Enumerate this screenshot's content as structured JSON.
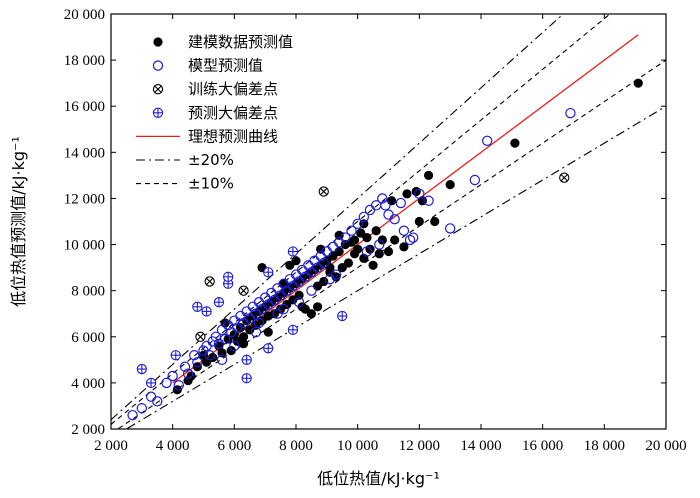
{
  "chart_data": {
    "type": "scatter",
    "title": "",
    "xlabel": "低位热值/kJ·kg⁻¹",
    "ylabel": "低位热值预测值/kJ·kg⁻¹",
    "xlim": [
      2000,
      20000
    ],
    "ylim": [
      2000,
      20000
    ],
    "x_ticks": [
      2000,
      4000,
      6000,
      8000,
      10000,
      12000,
      14000,
      16000,
      18000,
      20000
    ],
    "y_ticks": [
      2000,
      4000,
      6000,
      8000,
      10000,
      12000,
      14000,
      16000,
      18000,
      20000
    ],
    "x_tick_labels": [
      "2 000",
      "4 000",
      "6 000",
      "8 000",
      "10 000",
      "12 000",
      "14 000",
      "16 000",
      "18 000",
      "20 000"
    ],
    "y_tick_labels": [
      "2 000",
      "4 000",
      "6 000",
      "8 000",
      "10 000",
      "12 000",
      "14 000",
      "16 000",
      "18 000",
      "20 000"
    ],
    "grid": false,
    "legend_position": "top-left",
    "colors": {
      "train": "#000000",
      "pred": "#1c1cd6",
      "ideal": "#e8201c",
      "bounds": "#000000"
    },
    "legend": [
      {
        "key": "train",
        "label": "建模数据预测值"
      },
      {
        "key": "pred",
        "label": "模型预测值"
      },
      {
        "key": "train_outlier",
        "label": "训练大偏差点"
      },
      {
        "key": "pred_outlier",
        "label": "预测大偏差点"
      },
      {
        "key": "ideal",
        "label": "理想预测曲线"
      },
      {
        "key": "band20",
        "label": "±20%"
      },
      {
        "key": "band10",
        "label": "±10%"
      }
    ],
    "ideal_line": {
      "x": [
        4000,
        19100
      ],
      "y": [
        4000,
        19100
      ]
    },
    "bands": [
      {
        "key": "band20",
        "factors": [
          1.2,
          0.8
        ],
        "style": "dashdot"
      },
      {
        "key": "band10",
        "factors": [
          1.1,
          0.9
        ],
        "style": "dashed"
      }
    ],
    "series": [
      {
        "key": "train",
        "name": "建模数据预测值",
        "points": [
          [
            4150,
            3700
          ],
          [
            4500,
            4100
          ],
          [
            4800,
            4700
          ],
          [
            5100,
            4900
          ],
          [
            5300,
            5100
          ],
          [
            5500,
            5600
          ],
          [
            5600,
            5300
          ],
          [
            5800,
            5900
          ],
          [
            5900,
            5400
          ],
          [
            6000,
            6100
          ],
          [
            6100,
            5800
          ],
          [
            6200,
            6400
          ],
          [
            6300,
            6000
          ],
          [
            6400,
            6700
          ],
          [
            6500,
            6300
          ],
          [
            6600,
            6900
          ],
          [
            6700,
            6500
          ],
          [
            6800,
            7100
          ],
          [
            6900,
            6700
          ],
          [
            7000,
            7300
          ],
          [
            7100,
            6900
          ],
          [
            7200,
            7500
          ],
          [
            7300,
            7000
          ],
          [
            7400,
            7700
          ],
          [
            7500,
            7200
          ],
          [
            7600,
            7900
          ],
          [
            7700,
            7400
          ],
          [
            7800,
            8100
          ],
          [
            7900,
            7600
          ],
          [
            8000,
            8300
          ],
          [
            8100,
            7800
          ],
          [
            8200,
            8500
          ],
          [
            8300,
            7200
          ],
          [
            8400,
            8700
          ],
          [
            8500,
            7000
          ],
          [
            8600,
            8900
          ],
          [
            8700,
            7300
          ],
          [
            8800,
            9100
          ],
          [
            8900,
            8400
          ],
          [
            9000,
            9300
          ],
          [
            9100,
            8800
          ],
          [
            9200,
            9500
          ],
          [
            9300,
            8600
          ],
          [
            9400,
            9700
          ],
          [
            9500,
            9000
          ],
          [
            9600,
            10000
          ],
          [
            9700,
            9200
          ],
          [
            9800,
            10100
          ],
          [
            9900,
            9600
          ],
          [
            10000,
            9800
          ],
          [
            10100,
            10500
          ],
          [
            10200,
            9400
          ],
          [
            10300,
            10300
          ],
          [
            10400,
            9800
          ],
          [
            10500,
            9100
          ],
          [
            10600,
            10600
          ],
          [
            10700,
            9600
          ],
          [
            10800,
            10200
          ],
          [
            11000,
            9700
          ],
          [
            11100,
            11900
          ],
          [
            11200,
            10200
          ],
          [
            11500,
            9900
          ],
          [
            11600,
            12200
          ],
          [
            11900,
            12300
          ],
          [
            12000,
            11000
          ],
          [
            12100,
            11900
          ],
          [
            12300,
            13000
          ],
          [
            12500,
            11000
          ],
          [
            13000,
            12600
          ],
          [
            15100,
            14400
          ],
          [
            19100,
            17000
          ],
          [
            6900,
            9000
          ],
          [
            7800,
            9100
          ],
          [
            8000,
            9300
          ],
          [
            9400,
            10400
          ],
          [
            10200,
            10900
          ],
          [
            5700,
            6600
          ],
          [
            6300,
            5700
          ],
          [
            7100,
            6200
          ],
          [
            7600,
            8300
          ],
          [
            8800,
            9800
          ],
          [
            9100,
            9000
          ],
          [
            4600,
            4300
          ],
          [
            5000,
            5200
          ],
          [
            8200,
            7300
          ],
          [
            8700,
            8200
          ],
          [
            9900,
            10200
          ]
        ]
      },
      {
        "key": "pred",
        "name": "模型预测值",
        "points": [
          [
            2700,
            2600
          ],
          [
            3000,
            2900
          ],
          [
            3300,
            3400
          ],
          [
            3500,
            3200
          ],
          [
            3800,
            4000
          ],
          [
            4000,
            4300
          ],
          [
            4200,
            3900
          ],
          [
            4400,
            4700
          ],
          [
            4500,
            4400
          ],
          [
            4700,
            5200
          ],
          [
            4800,
            4900
          ],
          [
            5000,
            5400
          ],
          [
            5100,
            5600
          ],
          [
            5200,
            5200
          ],
          [
            5300,
            5800
          ],
          [
            5400,
            6000
          ],
          [
            5500,
            5700
          ],
          [
            5600,
            6300
          ],
          [
            5700,
            5900
          ],
          [
            5800,
            6500
          ],
          [
            5900,
            6200
          ],
          [
            6000,
            6700
          ],
          [
            6100,
            6400
          ],
          [
            6200,
            6900
          ],
          [
            6300,
            6600
          ],
          [
            6400,
            7100
          ],
          [
            6500,
            6800
          ],
          [
            6600,
            7300
          ],
          [
            6700,
            7000
          ],
          [
            6800,
            7500
          ],
          [
            6900,
            7200
          ],
          [
            7000,
            7700
          ],
          [
            7100,
            7400
          ],
          [
            7200,
            7900
          ],
          [
            7300,
            7600
          ],
          [
            7400,
            8100
          ],
          [
            7500,
            7800
          ],
          [
            7600,
            8300
          ],
          [
            7700,
            8000
          ],
          [
            7800,
            8500
          ],
          [
            7900,
            8200
          ],
          [
            8000,
            8700
          ],
          [
            8100,
            8400
          ],
          [
            8200,
            8900
          ],
          [
            8300,
            8600
          ],
          [
            8400,
            9100
          ],
          [
            8500,
            8800
          ],
          [
            8600,
            9300
          ],
          [
            8700,
            9000
          ],
          [
            8800,
            9500
          ],
          [
            8900,
            9200
          ],
          [
            9000,
            9700
          ],
          [
            9200,
            9900
          ],
          [
            9400,
            10100
          ],
          [
            9600,
            10300
          ],
          [
            9800,
            10600
          ],
          [
            10000,
            10900
          ],
          [
            10200,
            11200
          ],
          [
            10400,
            11500
          ],
          [
            10600,
            11700
          ],
          [
            10800,
            12000
          ],
          [
            11000,
            11300
          ],
          [
            11200,
            11100
          ],
          [
            11500,
            10600
          ],
          [
            11800,
            10300
          ],
          [
            12000,
            12200
          ],
          [
            12300,
            11900
          ],
          [
            13000,
            10700
          ],
          [
            13800,
            12800
          ],
          [
            14200,
            14500
          ],
          [
            16900,
            15700
          ],
          [
            5600,
            5000
          ],
          [
            6700,
            6200
          ],
          [
            7400,
            7000
          ],
          [
            8100,
            7500
          ],
          [
            9100,
            8500
          ],
          [
            10300,
            9700
          ],
          [
            10700,
            10000
          ],
          [
            11700,
            10200
          ],
          [
            6000,
            5600
          ],
          [
            6800,
            6600
          ],
          [
            7600,
            7200
          ],
          [
            8500,
            8000
          ],
          [
            9300,
            8700
          ],
          [
            10900,
            11700
          ],
          [
            11400,
            11800
          ]
        ]
      },
      {
        "key": "train_outlier",
        "name": "训练大偏差点",
        "points": [
          [
            4900,
            6000
          ],
          [
            5200,
            8400
          ],
          [
            6300,
            8000
          ],
          [
            8900,
            12300
          ],
          [
            16700,
            12900
          ]
        ]
      },
      {
        "key": "pred_outlier",
        "name": "预测大偏差点",
        "points": [
          [
            3000,
            4600
          ],
          [
            3300,
            4000
          ],
          [
            4100,
            5200
          ],
          [
            4800,
            7300
          ],
          [
            5100,
            7100
          ],
          [
            5500,
            7500
          ],
          [
            5800,
            8300
          ],
          [
            5800,
            8600
          ],
          [
            6400,
            4200
          ],
          [
            6400,
            5000
          ],
          [
            7100,
            5500
          ],
          [
            7100,
            8800
          ],
          [
            7900,
            6300
          ],
          [
            7900,
            9700
          ],
          [
            9500,
            6900
          ]
        ]
      }
    ]
  }
}
